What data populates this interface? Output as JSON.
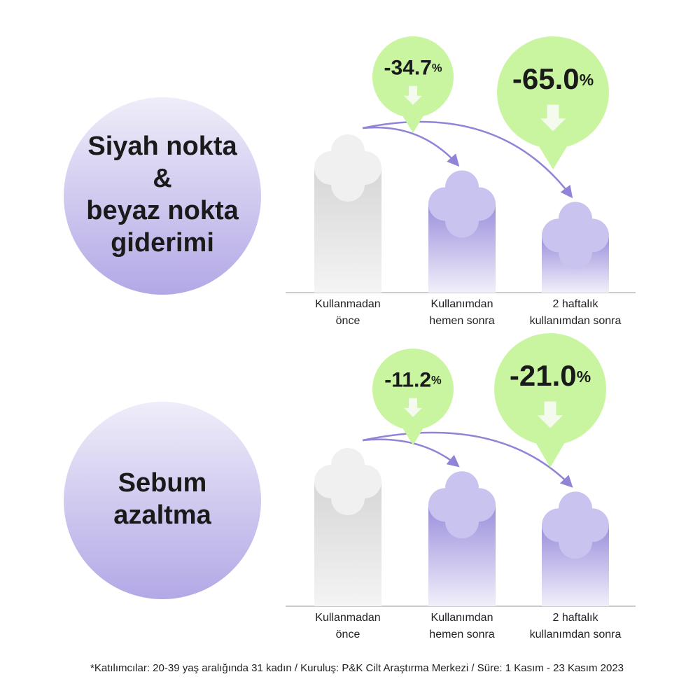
{
  "chart_data": [
    {
      "type": "bar",
      "title": [
        "Siyah nokta",
        "&",
        "beyaz nokta",
        "giderimi"
      ],
      "categories": [
        [
          "Kullanmadan",
          "önce"
        ],
        [
          "Kullanımdan",
          "hemen sonra"
        ],
        [
          "2 haftalık",
          "kullanımdan sonra"
        ]
      ],
      "values": [
        0,
        -34.7,
        -65.0
      ],
      "value_labels": [
        null,
        "-34.7%",
        "-65.0%"
      ],
      "ylim": [
        -120,
        0
      ],
      "colors": [
        "#dcdcdc",
        "#9b8fdc",
        "#9b8fdc"
      ]
    },
    {
      "type": "bar",
      "title": [
        "Sebum",
        "azaltma"
      ],
      "categories": [
        [
          "Kullanmadan",
          "önce"
        ],
        [
          "Kullanımdan",
          "hemen sonra"
        ],
        [
          "2 haftalık",
          "kullanımdan sonra"
        ]
      ],
      "values": [
        0,
        -11.2,
        -21.0
      ],
      "value_labels": [
        null,
        "-11.2%",
        "-21.0%"
      ],
      "ylim": [
        -60,
        0
      ],
      "colors": [
        "#dcdcdc",
        "#9b8fdc",
        "#9b8fdc"
      ]
    }
  ],
  "footnote": "*Katılımcılar: 20-39 yaş aralığında 31 kadın / Kuruluş: P&K Cilt Araştırma Merkezi / Süre: 1 Kasım - 23 Kasım 2023"
}
